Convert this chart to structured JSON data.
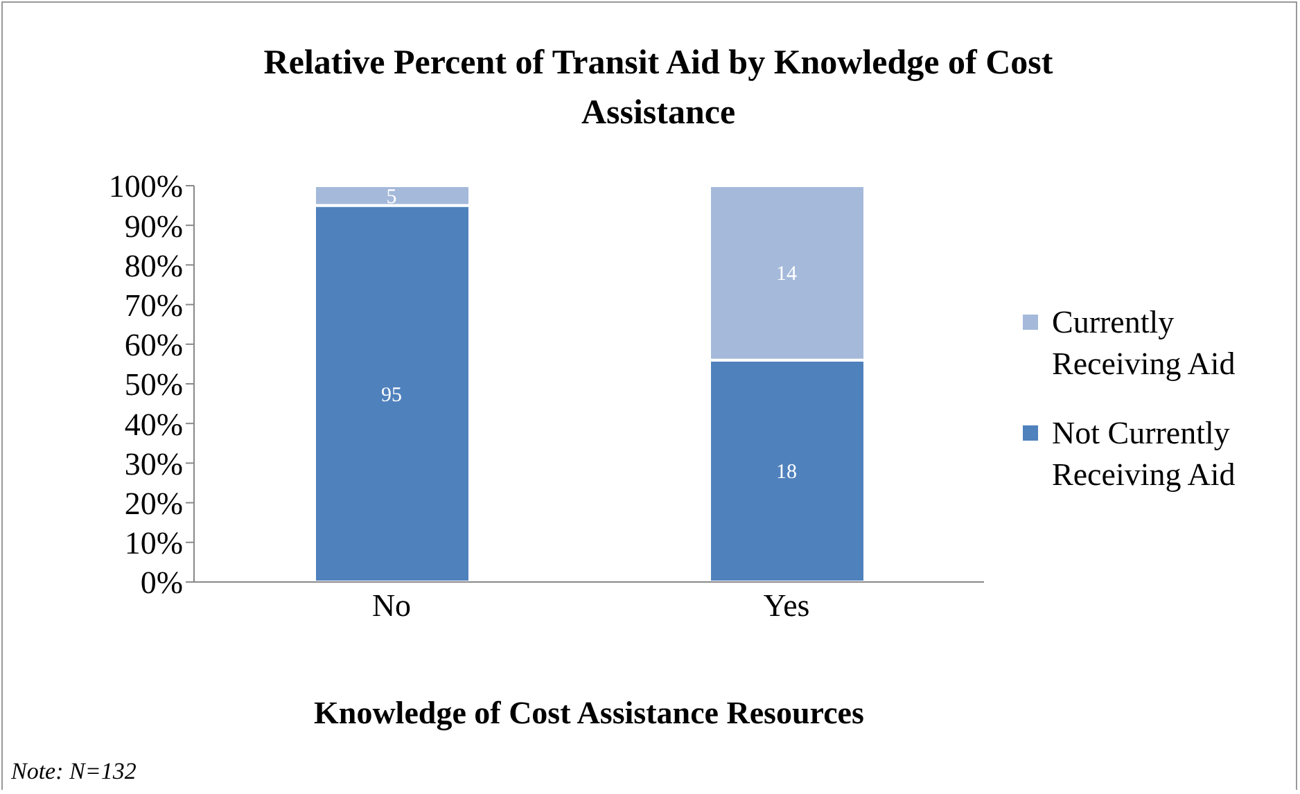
{
  "chart_data": {
    "type": "bar",
    "title": "Relative Percent of Transit Aid by Knowledge of Cost Assistance",
    "xlabel": "Knowledge of Cost Assistance Resources",
    "annotations": [
      "95",
      "5",
      "18",
      "14",
      "Note: N=132"
    ],
    "categories": [
      "No",
      "Yes"
    ],
    "stacked": true,
    "series": [
      {
        "name": "Not Currently Receiving Aid",
        "color": "#4f81bd",
        "values": [
          95,
          56
        ]
      },
      {
        "name": "Currently Receiving Aid",
        "color": "#a5b9da",
        "values": [
          5,
          44
        ]
      }
    ],
    "ylim": [
      0,
      100
    ],
    "yticks": [
      {
        "value": 0,
        "label": "0%"
      },
      {
        "value": 10,
        "label": "10%"
      },
      {
        "value": 20,
        "label": "20%"
      },
      {
        "value": 30,
        "label": "30%"
      },
      {
        "value": 40,
        "label": "40%"
      },
      {
        "value": 50,
        "label": "50%"
      },
      {
        "value": 60,
        "label": "60%"
      },
      {
        "value": 70,
        "label": "70%"
      },
      {
        "value": 80,
        "label": "80%"
      },
      {
        "value": 90,
        "label": "90%"
      },
      {
        "value": 100,
        "label": "100%"
      }
    ],
    "legend": "right"
  }
}
